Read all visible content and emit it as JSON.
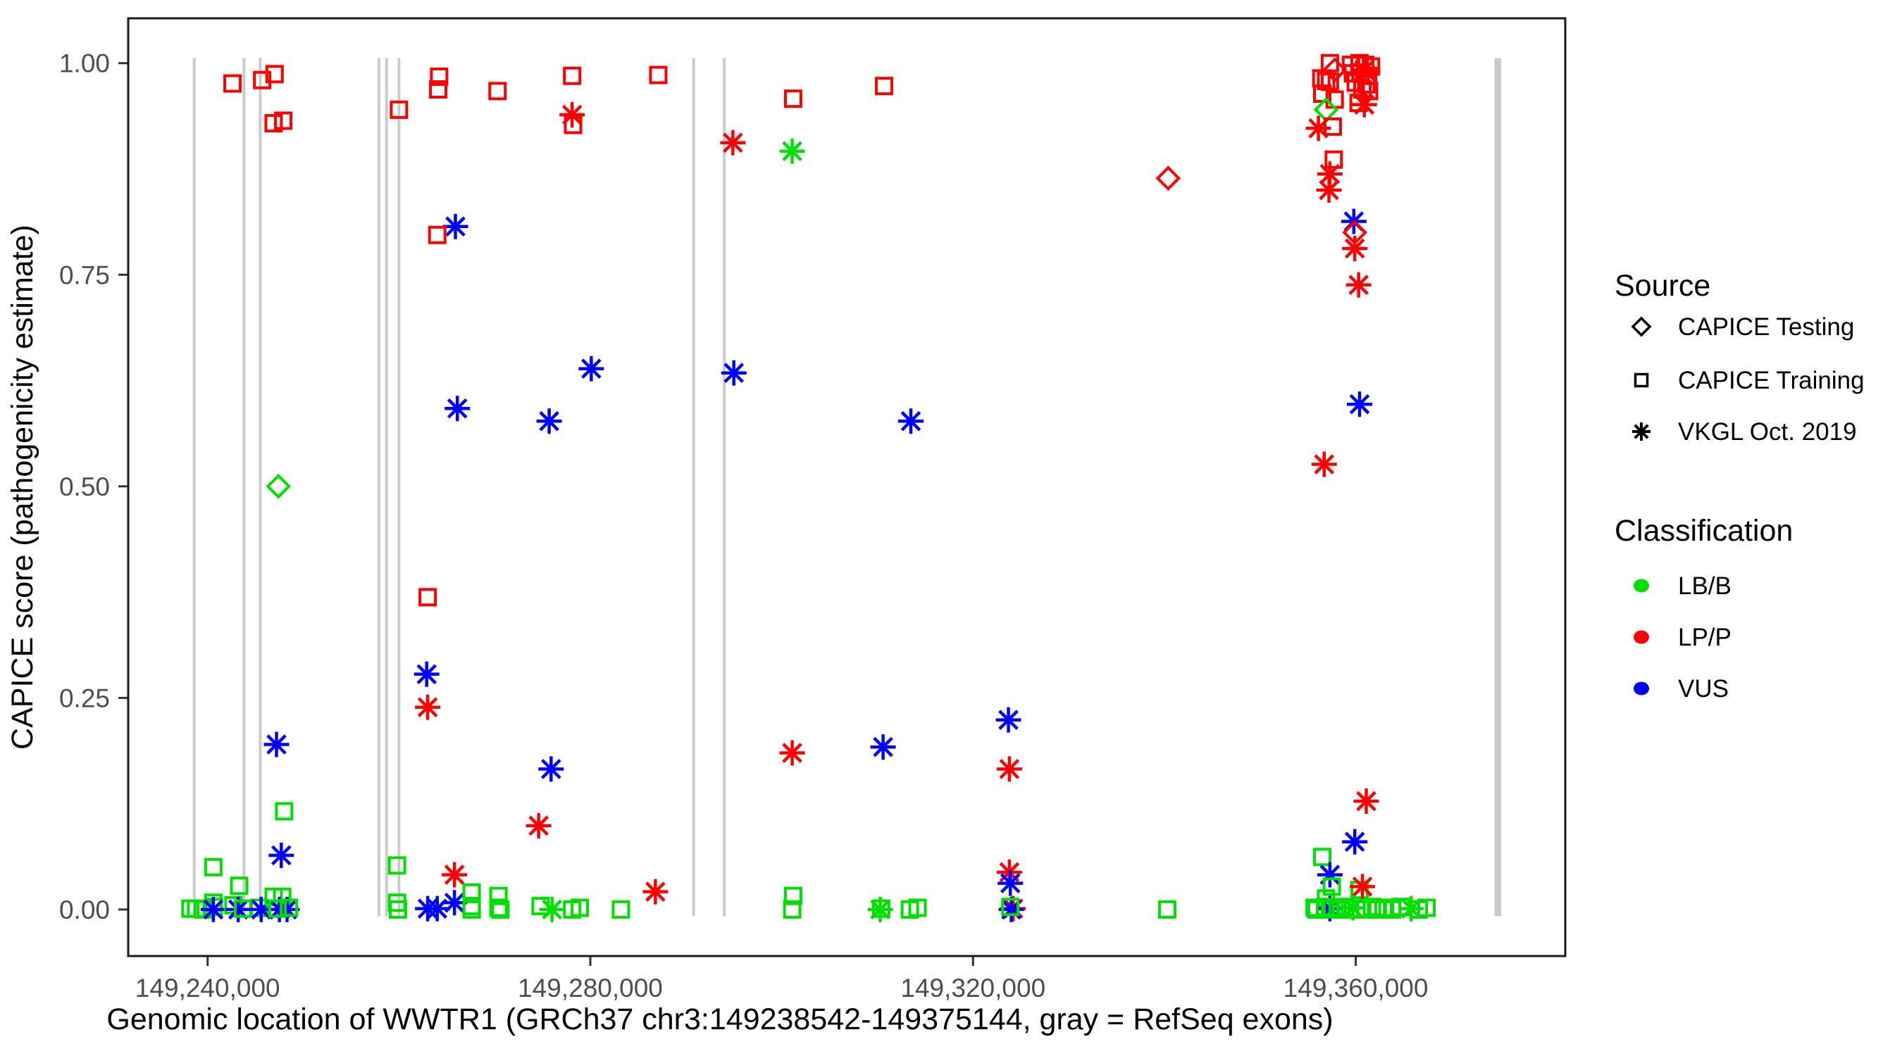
{
  "chart_data": {
    "type": "scatter",
    "title": "",
    "xlabel": "Genomic location of WWTR1 (GRCh37 chr3:149238542-149375144, gray = RefSeq exons)",
    "ylabel": "CAPICE score (pathogenicity estimate)",
    "x_range": [
      149231700,
      149381900
    ],
    "y_range": [
      -0.055,
      1.053
    ],
    "grid": "off",
    "x_ticks": [
      {
        "value": 149240000,
        "label": "149,240,000"
      },
      {
        "value": 149280000,
        "label": "149,280,000"
      },
      {
        "value": 149320000,
        "label": "149,320,000"
      },
      {
        "value": 149360000,
        "label": "149,360,000"
      }
    ],
    "y_ticks": [
      {
        "value": 0.0,
        "label": "0.00"
      },
      {
        "value": 0.25,
        "label": "0.25"
      },
      {
        "value": 0.5,
        "label": "0.50"
      },
      {
        "value": 0.75,
        "label": "0.75"
      },
      {
        "value": 1.0,
        "label": "1.00"
      }
    ],
    "colors": {
      "LB/B": "#00E000",
      "LP/P": "#FF0000",
      "VUS": "#0000FF",
      "exon": "#CBCBCB",
      "tick_label": "#4D4D4D",
      "axis": "#1A1A1A"
    },
    "marker_codes": {
      "D": "CAPICE Testing (diamond)",
      "S": "CAPICE Training (square)",
      "A": "VKGL Oct. 2019 (asterisk)"
    },
    "class_codes": {
      "G": "LB/B",
      "R": "LP/P",
      "U": "VUS"
    },
    "exons": {
      "note": "gray vertical lines = RefSeq exons",
      "span_scores": [
        -0.008,
        1.006
      ],
      "thin": [
        149238600,
        149243800,
        149245500,
        149257900,
        149258700,
        149260000,
        149290800,
        149294000
      ],
      "thick": {
        "start": 149374500,
        "end": 149375200
      }
    },
    "legend": {
      "source": {
        "title": "Source",
        "items": [
          {
            "label": "CAPICE Testing",
            "marker": "diamond"
          },
          {
            "label": "CAPICE Training",
            "marker": "square"
          },
          {
            "label": "VKGL Oct. 2019",
            "marker": "asterisk"
          }
        ]
      },
      "classification": {
        "title": "Classification",
        "items": [
          {
            "label": "LB/B",
            "color": "#00E000"
          },
          {
            "label": "LP/P",
            "color": "#FF0000"
          },
          {
            "label": "VUS",
            "color": "#0000FF"
          }
        ]
      }
    },
    "points": [
      [
        149242600,
        0.976,
        "S",
        "R"
      ],
      [
        149245700,
        0.98,
        "S",
        "R"
      ],
      [
        149247000,
        0.987,
        "S",
        "R"
      ],
      [
        149246900,
        0.929,
        "S",
        "R"
      ],
      [
        149247900,
        0.932,
        "S",
        "R"
      ],
      [
        149247400,
        0.5,
        "D",
        "G"
      ],
      [
        149247200,
        0.195,
        "A",
        "U"
      ],
      [
        149248000,
        0.116,
        "S",
        "G"
      ],
      [
        149247700,
        0.064,
        "A",
        "U"
      ],
      [
        149240600,
        0.05,
        "S",
        "G"
      ],
      [
        149243300,
        0.028,
        "S",
        "G"
      ],
      [
        149240600,
        0.008,
        "S",
        "G"
      ],
      [
        149240650,
        0.003,
        "S",
        "G"
      ],
      [
        149238200,
        0.001,
        "S",
        "G"
      ],
      [
        149238800,
        0.001,
        "S",
        "G"
      ],
      [
        149239500,
        0.0,
        "S",
        "G"
      ],
      [
        149240600,
        0.0,
        "A",
        "U"
      ],
      [
        149242700,
        0.005,
        "S",
        "G"
      ],
      [
        149243200,
        0.0,
        "A",
        "U"
      ],
      [
        149243700,
        0.001,
        "S",
        "G"
      ],
      [
        149245400,
        0.002,
        "S",
        "G"
      ],
      [
        149245600,
        0.0,
        "A",
        "U"
      ],
      [
        149246900,
        0.015,
        "S",
        "G"
      ],
      [
        149247800,
        0.015,
        "S",
        "G"
      ],
      [
        149247500,
        0.0,
        "A",
        "U"
      ],
      [
        149248300,
        0.0,
        "A",
        "U"
      ],
      [
        149247300,
        0.001,
        "S",
        "G"
      ],
      [
        149248500,
        0.002,
        "S",
        "G"
      ],
      [
        149259800,
        0.052,
        "S",
        "G"
      ],
      [
        149259800,
        0.008,
        "S",
        "G"
      ],
      [
        149259900,
        0.0,
        "S",
        "G"
      ],
      [
        149260000,
        0.945,
        "S",
        "R"
      ],
      [
        149263000,
        0.369,
        "S",
        "R"
      ],
      [
        149262900,
        0.278,
        "A",
        "U"
      ],
      [
        149263000,
        0.239,
        "A",
        "R"
      ],
      [
        149265900,
        0.807,
        "A",
        "U"
      ],
      [
        149264000,
        0.797,
        "S",
        "R"
      ],
      [
        149264200,
        0.984,
        "S",
        "R"
      ],
      [
        149264100,
        0.969,
        "S",
        "R"
      ],
      [
        149270300,
        0.967,
        "S",
        "R"
      ],
      [
        149266100,
        0.592,
        "A",
        "U"
      ],
      [
        149275700,
        0.577,
        "A",
        "U"
      ],
      [
        149280100,
        0.639,
        "A",
        "U"
      ],
      [
        149265800,
        0.041,
        "A",
        "R"
      ],
      [
        149263000,
        0.001,
        "A",
        "U"
      ],
      [
        149264000,
        0.001,
        "A",
        "U"
      ],
      [
        149265800,
        0.008,
        "A",
        "U"
      ],
      [
        149267600,
        0.02,
        "S",
        "G"
      ],
      [
        149267600,
        0.004,
        "S",
        "G"
      ],
      [
        149267600,
        0.0,
        "S",
        "G"
      ],
      [
        149270400,
        0.016,
        "S",
        "G"
      ],
      [
        149270400,
        0.002,
        "S",
        "G"
      ],
      [
        149270600,
        0.0,
        "S",
        "G"
      ],
      [
        149274800,
        0.004,
        "S",
        "G"
      ],
      [
        149276000,
        0.0,
        "A",
        "G"
      ],
      [
        149278100,
        0.0,
        "S",
        "G"
      ],
      [
        149278900,
        0.002,
        "S",
        "G"
      ],
      [
        149275900,
        0.166,
        "A",
        "U"
      ],
      [
        149274600,
        0.099,
        "A",
        "R"
      ],
      [
        149278100,
        0.985,
        "S",
        "R"
      ],
      [
        149278100,
        0.939,
        "A",
        "R"
      ],
      [
        149278200,
        0.927,
        "S",
        "R"
      ],
      [
        149283200,
        0.0,
        "S",
        "G"
      ],
      [
        149286800,
        0.021,
        "A",
        "R"
      ],
      [
        149287100,
        0.986,
        "S",
        "R"
      ],
      [
        149294900,
        0.906,
        "A",
        "R"
      ],
      [
        149295000,
        0.634,
        "A",
        "U"
      ],
      [
        149301100,
        0.896,
        "A",
        "G"
      ],
      [
        149301200,
        0.958,
        "S",
        "R"
      ],
      [
        149310700,
        0.973,
        "S",
        "R"
      ],
      [
        149313500,
        0.577,
        "A",
        "U"
      ],
      [
        149301100,
        0.185,
        "A",
        "R"
      ],
      [
        149310600,
        0.192,
        "A",
        "U"
      ],
      [
        149301200,
        0.016,
        "S",
        "G"
      ],
      [
        149301100,
        0.0,
        "S",
        "G"
      ],
      [
        149310300,
        0.0,
        "A",
        "G"
      ],
      [
        149310400,
        0.001,
        "S",
        "G"
      ],
      [
        149313400,
        0.0,
        "S",
        "G"
      ],
      [
        149314200,
        0.002,
        "S",
        "G"
      ],
      [
        149323700,
        0.224,
        "A",
        "U"
      ],
      [
        149323800,
        0.166,
        "A",
        "R"
      ],
      [
        149323800,
        0.044,
        "A",
        "R"
      ],
      [
        149323900,
        0.031,
        "A",
        "U"
      ],
      [
        149324200,
        0.001,
        "A",
        "R"
      ],
      [
        149324000,
        0.0,
        "A",
        "U"
      ],
      [
        149323900,
        0.003,
        "S",
        "G"
      ],
      [
        149340400,
        0.864,
        "D",
        "R"
      ],
      [
        149340300,
        0.0,
        "S",
        "G"
      ],
      [
        149357300,
        1.0,
        "S",
        "R"
      ],
      [
        149357800,
        0.992,
        "D",
        "R"
      ],
      [
        149356400,
        0.982,
        "S",
        "R"
      ],
      [
        149356900,
        0.979,
        "S",
        "R"
      ],
      [
        149357300,
        0.978,
        "S",
        "R"
      ],
      [
        149356500,
        0.964,
        "S",
        "R"
      ],
      [
        149357800,
        0.957,
        "S",
        "R"
      ],
      [
        149356900,
        0.945,
        "D",
        "G"
      ],
      [
        149356100,
        0.923,
        "A",
        "R"
      ],
      [
        149357600,
        0.925,
        "S",
        "R"
      ],
      [
        149357700,
        0.886,
        "S",
        "R"
      ],
      [
        149357300,
        0.869,
        "A",
        "R"
      ],
      [
        149357200,
        0.85,
        "A",
        "R"
      ],
      [
        149359800,
        0.813,
        "A",
        "U"
      ],
      [
        149359900,
        0.8,
        "D",
        "R"
      ],
      [
        149359900,
        0.781,
        "A",
        "R"
      ],
      [
        149360300,
        0.738,
        "A",
        "R"
      ],
      [
        149360400,
        0.597,
        "A",
        "U"
      ],
      [
        149356700,
        0.526,
        "A",
        "R"
      ],
      [
        149359500,
        0.998,
        "S",
        "R"
      ],
      [
        149360400,
        1.0,
        "S",
        "R"
      ],
      [
        149361000,
        0.998,
        "S",
        "R"
      ],
      [
        149361600,
        0.996,
        "S",
        "R"
      ],
      [
        149359700,
        0.988,
        "S",
        "R"
      ],
      [
        149360500,
        0.989,
        "S",
        "R"
      ],
      [
        149361300,
        0.985,
        "S",
        "R"
      ],
      [
        149360000,
        0.977,
        "S",
        "R"
      ],
      [
        149360900,
        0.992,
        "A",
        "R"
      ],
      [
        149361100,
        0.975,
        "S",
        "R"
      ],
      [
        149360700,
        0.969,
        "S",
        "R"
      ],
      [
        149361400,
        0.967,
        "S",
        "R"
      ],
      [
        149360300,
        0.953,
        "S",
        "R"
      ],
      [
        149360900,
        0.951,
        "A",
        "R"
      ],
      [
        149361100,
        0.128,
        "A",
        "R"
      ],
      [
        149359900,
        0.08,
        "A",
        "U"
      ],
      [
        149356500,
        0.062,
        "S",
        "G"
      ],
      [
        149357300,
        0.041,
        "A",
        "U"
      ],
      [
        149357500,
        0.027,
        "S",
        "G"
      ],
      [
        149356900,
        0.013,
        "S",
        "G"
      ],
      [
        149360400,
        0.023,
        "S",
        "G"
      ],
      [
        149360700,
        0.027,
        "A",
        "R"
      ],
      [
        149357300,
        0.001,
        "A",
        "U"
      ],
      [
        149355700,
        0.002,
        "S",
        "G"
      ],
      [
        149355900,
        0.0,
        "S",
        "G"
      ],
      [
        149356800,
        0.003,
        "S",
        "G"
      ],
      [
        149357400,
        0.0,
        "S",
        "G"
      ],
      [
        149358100,
        0.002,
        "S",
        "G"
      ],
      [
        149358500,
        0.0,
        "S",
        "G"
      ],
      [
        149358900,
        0.003,
        "S",
        "G"
      ],
      [
        149359400,
        0.001,
        "S",
        "G"
      ],
      [
        149359700,
        0.002,
        "A",
        "G"
      ],
      [
        149360500,
        0.0,
        "S",
        "G"
      ],
      [
        149361700,
        0.003,
        "S",
        "G"
      ],
      [
        149362300,
        0.0,
        "S",
        "G"
      ],
      [
        149362900,
        0.002,
        "S",
        "G"
      ],
      [
        149363800,
        0.0,
        "S",
        "G"
      ],
      [
        149364700,
        0.003,
        "S",
        "G"
      ],
      [
        149365800,
        0.001,
        "A",
        "G"
      ],
      [
        149366600,
        0.0,
        "S",
        "G"
      ],
      [
        149367400,
        0.002,
        "S",
        "G"
      ]
    ]
  }
}
